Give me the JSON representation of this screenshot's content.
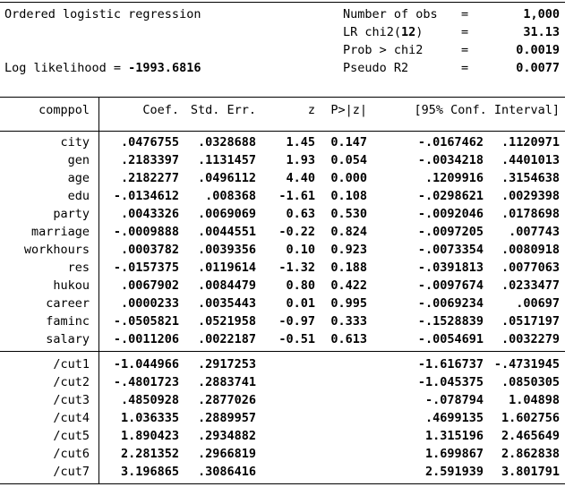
{
  "header": {
    "title": "Ordered logistic regression",
    "log_likelihood_label": "Log likelihood = ",
    "log_likelihood_value": "-1993.6816",
    "stats": [
      {
        "label_pre": "Number of obs",
        "label_bold": "",
        "label_post": "",
        "eq": "=",
        "value": "1,000"
      },
      {
        "label_pre": "LR chi2(",
        "label_bold": "12",
        "label_post": ")",
        "eq": "=",
        "value": "31.13"
      },
      {
        "label_pre": "Prob > chi2",
        "label_bold": "",
        "label_post": "",
        "eq": "=",
        "value": "0.0019"
      },
      {
        "label_pre": "Pseudo R2",
        "label_bold": "",
        "label_post": "",
        "eq": "=",
        "value": "0.0077"
      }
    ]
  },
  "table": {
    "depvar": "comppol",
    "columns": {
      "coef": "Coef.",
      "se": "Std. Err.",
      "z": "z",
      "p": "P>|z|",
      "ci": "[95% Conf. Interval]"
    },
    "rows": [
      {
        "name": "city",
        "coef": ".0476755",
        "se": ".0328688",
        "z": "1.45",
        "p": "0.147",
        "ci_low": "-.0167462",
        "ci_high": ".1120971"
      },
      {
        "name": "gen",
        "coef": ".2183397",
        "se": ".1131457",
        "z": "1.93",
        "p": "0.054",
        "ci_low": "-.0034218",
        "ci_high": ".4401013"
      },
      {
        "name": "age",
        "coef": ".2182277",
        "se": ".0496112",
        "z": "4.40",
        "p": "0.000",
        "ci_low": ".1209916",
        "ci_high": ".3154638"
      },
      {
        "name": "edu",
        "coef": "-.0134612",
        "se": ".008368",
        "z": "-1.61",
        "p": "0.108",
        "ci_low": "-.0298621",
        "ci_high": ".0029398"
      },
      {
        "name": "party",
        "coef": ".0043326",
        "se": ".0069069",
        "z": "0.63",
        "p": "0.530",
        "ci_low": "-.0092046",
        "ci_high": ".0178698"
      },
      {
        "name": "marriage",
        "coef": "-.0009888",
        "se": ".0044551",
        "z": "-0.22",
        "p": "0.824",
        "ci_low": "-.0097205",
        "ci_high": ".007743"
      },
      {
        "name": "workhours",
        "coef": ".0003782",
        "se": ".0039356",
        "z": "0.10",
        "p": "0.923",
        "ci_low": "-.0073354",
        "ci_high": ".0080918"
      },
      {
        "name": "res",
        "coef": "-.0157375",
        "se": ".0119614",
        "z": "-1.32",
        "p": "0.188",
        "ci_low": "-.0391813",
        "ci_high": ".0077063"
      },
      {
        "name": "hukou",
        "coef": ".0067902",
        "se": ".0084479",
        "z": "0.80",
        "p": "0.422",
        "ci_low": "-.0097674",
        "ci_high": ".0233477"
      },
      {
        "name": "career",
        "coef": ".0000233",
        "se": ".0035443",
        "z": "0.01",
        "p": "0.995",
        "ci_low": "-.0069234",
        "ci_high": ".00697"
      },
      {
        "name": "faminc",
        "coef": "-.0505821",
        "se": ".0521958",
        "z": "-0.97",
        "p": "0.333",
        "ci_low": "-.1528839",
        "ci_high": ".0517197"
      },
      {
        "name": "salary",
        "coef": "-.0011206",
        "se": ".0022187",
        "z": "-0.51",
        "p": "0.613",
        "ci_low": "-.0054691",
        "ci_high": ".0032279"
      }
    ],
    "cuts": [
      {
        "name": "/cut1",
        "coef": "-1.044966",
        "se": ".2917253",
        "z": "",
        "p": "",
        "ci_low": "-1.616737",
        "ci_high": "-.4731945"
      },
      {
        "name": "/cut2",
        "coef": "-.4801723",
        "se": ".2883741",
        "z": "",
        "p": "",
        "ci_low": "-1.045375",
        "ci_high": ".0850305"
      },
      {
        "name": "/cut3",
        "coef": ".4850928",
        "se": ".2877026",
        "z": "",
        "p": "",
        "ci_low": "-.078794",
        "ci_high": "1.04898"
      },
      {
        "name": "/cut4",
        "coef": "1.036335",
        "se": ".2889957",
        "z": "",
        "p": "",
        "ci_low": ".4699135",
        "ci_high": "1.602756"
      },
      {
        "name": "/cut5",
        "coef": "1.890423",
        "se": ".2934882",
        "z": "",
        "p": "",
        "ci_low": "1.315196",
        "ci_high": "2.465649"
      },
      {
        "name": "/cut6",
        "coef": "2.281352",
        "se": ".2966819",
        "z": "",
        "p": "",
        "ci_low": "1.699867",
        "ci_high": "2.862838"
      },
      {
        "name": "/cut7",
        "coef": "3.196865",
        "se": ".3086416",
        "z": "",
        "p": "",
        "ci_low": "2.591939",
        "ci_high": "3.801791"
      }
    ]
  }
}
